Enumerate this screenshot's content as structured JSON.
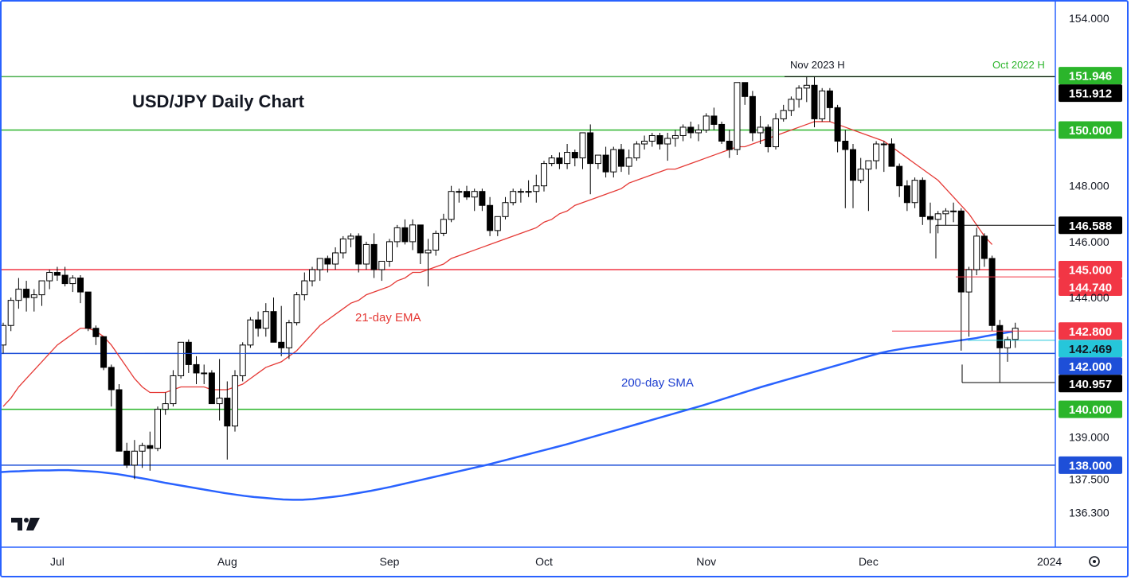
{
  "chart_data": {
    "type": "candlestick",
    "title": "USD/JPY Daily Chart",
    "y_axis": {
      "range": [
        135.8,
        154.6
      ],
      "ticks": [
        "154.000",
        "148.000",
        "146.000",
        "144.000",
        "139.000",
        "137.500",
        "136.300"
      ],
      "tick_values": [
        154.0,
        148.0,
        146.0,
        144.0,
        139.0,
        137.5,
        136.3
      ]
    },
    "x_axis": {
      "labels": [
        "Jul",
        "Aug",
        "Sep",
        "Oct",
        "Nov",
        "Dec",
        "2024"
      ],
      "label_index": [
        7,
        29,
        50,
        70,
        91,
        112,
        134
      ]
    },
    "candles": [
      [
        142.3,
        143.1,
        142.0,
        143.0
      ],
      [
        143.0,
        144.0,
        142.8,
        143.9
      ],
      [
        143.9,
        144.7,
        143.6,
        144.3
      ],
      [
        144.3,
        144.6,
        143.5,
        144.0
      ],
      [
        144.0,
        144.3,
        143.5,
        144.1
      ],
      [
        144.1,
        144.5,
        143.7,
        144.6
      ],
      [
        144.6,
        145.0,
        144.3,
        144.9
      ],
      [
        144.9,
        145.1,
        144.6,
        144.8
      ],
      [
        144.8,
        145.1,
        144.4,
        144.5
      ],
      [
        144.5,
        144.8,
        144.2,
        144.7
      ],
      [
        144.7,
        144.8,
        143.8,
        144.2
      ],
      [
        144.2,
        144.2,
        142.8,
        142.9
      ],
      [
        142.9,
        143.0,
        142.3,
        142.6
      ],
      [
        142.6,
        142.6,
        141.4,
        141.5
      ],
      [
        141.5,
        141.6,
        140.1,
        140.7
      ],
      [
        140.7,
        140.9,
        138.6,
        138.5
      ],
      [
        138.5,
        138.8,
        137.9,
        138.0
      ],
      [
        138.0,
        138.9,
        137.5,
        138.5
      ],
      [
        138.5,
        138.8,
        137.9,
        138.7
      ],
      [
        138.7,
        139.2,
        137.8,
        138.6
      ],
      [
        138.6,
        140.1,
        138.5,
        140.0
      ],
      [
        140.0,
        140.6,
        139.8,
        140.2
      ],
      [
        140.2,
        141.4,
        140.1,
        141.2
      ],
      [
        141.2,
        142.4,
        141.1,
        142.4
      ],
      [
        142.4,
        142.5,
        141.3,
        141.6
      ],
      [
        141.6,
        141.9,
        140.9,
        141.3
      ],
      [
        141.3,
        141.6,
        140.9,
        141.3
      ],
      [
        141.3,
        141.4,
        140.2,
        140.2
      ],
      [
        140.2,
        141.8,
        139.6,
        140.4
      ],
      [
        140.4,
        141.0,
        138.2,
        139.4
      ],
      [
        139.4,
        141.4,
        139.2,
        141.2
      ],
      [
        141.2,
        142.4,
        141.0,
        142.3
      ],
      [
        142.3,
        143.3,
        142.2,
        143.2
      ],
      [
        143.2,
        143.5,
        142.6,
        142.9
      ],
      [
        142.9,
        143.8,
        142.6,
        143.5
      ],
      [
        143.5,
        144.0,
        142.4,
        142.4
      ],
      [
        142.4,
        143.7,
        141.9,
        142.2
      ],
      [
        142.2,
        143.2,
        141.8,
        143.1
      ],
      [
        143.1,
        144.2,
        143.0,
        144.1
      ],
      [
        144.1,
        144.9,
        143.9,
        144.6
      ],
      [
        144.6,
        145.1,
        144.4,
        145.0
      ],
      [
        145.0,
        145.4,
        144.6,
        145.4
      ],
      [
        145.4,
        145.5,
        144.9,
        145.2
      ],
      [
        145.2,
        145.8,
        145.0,
        145.6
      ],
      [
        145.6,
        146.2,
        145.4,
        146.1
      ],
      [
        146.1,
        146.3,
        145.8,
        146.2
      ],
      [
        146.2,
        146.3,
        144.9,
        145.2
      ],
      [
        145.2,
        146.0,
        145.0,
        145.9
      ],
      [
        145.9,
        146.3,
        144.7,
        145.0
      ],
      [
        145.0,
        145.2,
        144.6,
        145.3
      ],
      [
        145.3,
        146.1,
        145.1,
        146.0
      ],
      [
        146.0,
        146.6,
        145.8,
        146.5
      ],
      [
        146.5,
        146.8,
        145.9,
        146.0
      ],
      [
        146.0,
        146.8,
        145.7,
        146.6
      ],
      [
        146.6,
        146.6,
        145.2,
        145.6
      ],
      [
        145.6,
        146.1,
        144.4,
        145.7
      ],
      [
        145.7,
        146.4,
        145.5,
        146.3
      ],
      [
        146.3,
        147.0,
        146.2,
        146.8
      ],
      [
        146.8,
        148.0,
        146.7,
        147.8
      ],
      [
        147.8,
        147.9,
        147.4,
        147.8
      ],
      [
        147.8,
        148.0,
        147.5,
        147.6
      ],
      [
        147.6,
        147.9,
        147.1,
        147.8
      ],
      [
        147.8,
        147.9,
        147.1,
        147.3
      ],
      [
        147.3,
        147.6,
        146.2,
        146.4
      ],
      [
        146.4,
        146.9,
        146.2,
        146.9
      ],
      [
        146.9,
        147.6,
        146.8,
        147.4
      ],
      [
        147.4,
        147.9,
        147.3,
        147.8
      ],
      [
        147.8,
        147.9,
        147.4,
        147.8
      ],
      [
        147.8,
        148.2,
        147.6,
        147.8
      ],
      [
        147.8,
        148.4,
        147.4,
        148.0
      ],
      [
        148.0,
        148.9,
        147.8,
        148.8
      ],
      [
        148.8,
        149.1,
        148.7,
        149.0
      ],
      [
        149.0,
        149.2,
        148.6,
        148.8
      ],
      [
        148.8,
        149.5,
        148.6,
        149.2
      ],
      [
        149.2,
        149.3,
        148.7,
        149.0
      ],
      [
        149.0,
        149.9,
        148.6,
        149.9
      ],
      [
        149.9,
        150.2,
        147.7,
        148.8
      ],
      [
        148.8,
        149.1,
        148.6,
        149.1
      ],
      [
        149.1,
        149.4,
        148.3,
        148.5
      ],
      [
        148.5,
        149.4,
        148.3,
        149.3
      ],
      [
        149.3,
        149.5,
        148.5,
        148.7
      ],
      [
        148.7,
        149.3,
        148.4,
        149.0
      ],
      [
        149.0,
        149.6,
        148.9,
        149.5
      ],
      [
        149.5,
        149.8,
        149.3,
        149.6
      ],
      [
        149.6,
        149.9,
        149.4,
        149.8
      ],
      [
        149.8,
        149.9,
        149.3,
        149.5
      ],
      [
        149.5,
        149.9,
        148.9,
        149.7
      ],
      [
        149.7,
        150.0,
        149.4,
        149.8
      ],
      [
        149.8,
        150.2,
        149.6,
        150.1
      ],
      [
        150.1,
        150.3,
        149.7,
        149.9
      ],
      [
        149.9,
        150.2,
        149.6,
        150.0
      ],
      [
        150.0,
        150.6,
        149.9,
        150.5
      ],
      [
        150.5,
        150.8,
        150.0,
        150.2
      ],
      [
        150.2,
        150.3,
        149.5,
        149.6
      ],
      [
        149.6,
        150.0,
        149.0,
        149.3
      ],
      [
        149.3,
        151.7,
        149.1,
        151.7
      ],
      [
        151.7,
        151.7,
        150.9,
        151.2
      ],
      [
        151.2,
        151.4,
        149.6,
        149.9
      ],
      [
        149.9,
        150.5,
        149.5,
        150.1
      ],
      [
        150.1,
        150.2,
        149.2,
        149.4
      ],
      [
        149.4,
        150.6,
        149.3,
        150.4
      ],
      [
        150.4,
        150.9,
        150.3,
        150.7
      ],
      [
        150.7,
        151.2,
        150.5,
        151.1
      ],
      [
        151.1,
        151.6,
        150.8,
        151.5
      ],
      [
        151.5,
        151.9,
        151.0,
        151.6
      ],
      [
        151.6,
        151.9,
        150.1,
        150.4
      ],
      [
        150.4,
        151.5,
        150.3,
        151.4
      ],
      [
        151.4,
        151.5,
        150.3,
        150.8
      ],
      [
        150.8,
        150.9,
        149.2,
        149.6
      ],
      [
        149.6,
        150.0,
        147.2,
        149.3
      ],
      [
        149.3,
        149.5,
        147.2,
        148.2
      ],
      [
        148.2,
        149.0,
        148.1,
        148.6
      ],
      [
        148.6,
        148.9,
        147.1,
        148.9
      ],
      [
        148.9,
        149.6,
        148.6,
        149.5
      ],
      [
        149.5,
        149.6,
        148.5,
        149.5
      ],
      [
        149.5,
        149.7,
        148.7,
        148.7
      ],
      [
        148.7,
        148.8,
        147.6,
        148.0
      ],
      [
        148.0,
        148.2,
        147.1,
        147.4
      ],
      [
        147.4,
        148.3,
        147.2,
        148.2
      ],
      [
        148.2,
        148.3,
        146.6,
        146.9
      ],
      [
        146.9,
        147.4,
        146.3,
        146.8
      ],
      [
        146.8,
        147.1,
        146.3,
        147.0
      ],
      [
        147.0,
        147.2,
        146.6,
        147.1
      ],
      [
        147.1,
        147.4,
        146.7,
        147.1
      ],
      [
        147.1,
        147.2,
        142.1,
        144.2
      ],
      [
        144.2,
        145.1,
        142.6,
        145.0
      ],
      [
        145.0,
        146.5,
        144.8,
        146.2
      ],
      [
        146.2,
        146.3,
        145.1,
        145.4
      ],
      [
        145.4,
        145.5,
        142.8,
        143.0
      ],
      [
        143.0,
        143.2,
        140.95,
        142.2
      ],
      [
        142.2,
        142.6,
        141.7,
        142.5
      ],
      [
        142.5,
        143.1,
        142.2,
        142.9
      ]
    ],
    "ema21": [
      140.1,
      140.4,
      140.8,
      141.1,
      141.4,
      141.7,
      142.0,
      142.3,
      142.5,
      142.7,
      142.9,
      142.9,
      142.8,
      142.6,
      142.3,
      141.9,
      141.5,
      141.1,
      140.8,
      140.6,
      140.6,
      140.6,
      140.7,
      140.8,
      140.8,
      140.8,
      140.8,
      140.7,
      140.7,
      140.7,
      140.8,
      140.9,
      141.1,
      141.3,
      141.5,
      141.6,
      141.7,
      141.9,
      142.1,
      142.4,
      142.7,
      143.0,
      143.2,
      143.4,
      143.6,
      143.8,
      143.9,
      144.1,
      144.2,
      144.3,
      144.4,
      144.6,
      144.7,
      144.9,
      144.9,
      145.0,
      145.1,
      145.2,
      145.4,
      145.5,
      145.6,
      145.7,
      145.8,
      145.9,
      146.0,
      146.1,
      146.2,
      146.3,
      146.4,
      146.5,
      146.7,
      146.8,
      147.0,
      147.1,
      147.3,
      147.4,
      147.5,
      147.6,
      147.7,
      147.8,
      147.9,
      148.1,
      148.2,
      148.3,
      148.4,
      148.5,
      148.6,
      148.6,
      148.7,
      148.8,
      148.9,
      149.0,
      149.1,
      149.2,
      149.3,
      149.4,
      149.4,
      149.5,
      149.6,
      149.7,
      149.8,
      149.9,
      150.0,
      150.1,
      150.2,
      150.3,
      150.3,
      150.3,
      150.2,
      150.1,
      150.0,
      149.9,
      149.8,
      149.7,
      149.6,
      149.4,
      149.2,
      149.0,
      148.8,
      148.6,
      148.4,
      148.2,
      147.9,
      147.6,
      147.3,
      147.0,
      146.6,
      146.2,
      145.9
    ],
    "sma200": [
      137.75,
      137.77,
      137.78,
      137.8,
      137.81,
      137.81,
      137.82,
      137.82,
      137.8,
      137.78,
      137.76,
      137.72,
      137.68,
      137.62,
      137.56,
      137.5,
      137.43,
      137.36,
      137.3,
      137.24,
      137.18,
      137.12,
      137.06,
      137.0,
      136.95,
      136.9,
      136.86,
      136.83,
      136.8,
      136.77,
      136.76,
      136.76,
      136.78,
      136.82,
      136.86,
      136.9,
      136.96,
      137.02,
      137.08,
      137.15,
      137.22,
      137.3,
      137.38,
      137.46,
      137.54,
      137.62,
      137.7,
      137.78,
      137.86,
      137.94,
      138.02,
      138.11,
      138.2,
      138.29,
      138.38,
      138.47,
      138.56,
      138.65,
      138.74,
      138.84,
      138.94,
      139.04,
      139.14,
      139.24,
      139.34,
      139.44,
      139.54,
      139.64,
      139.74,
      139.84,
      139.94,
      140.04,
      140.14,
      140.25,
      140.36,
      140.47,
      140.58,
      140.69,
      140.8,
      140.9,
      141.0,
      141.1,
      141.2,
      141.3,
      141.4,
      141.5,
      141.6,
      141.7,
      141.8,
      141.9,
      142.0,
      142.08,
      142.14,
      142.2,
      142.25,
      142.3,
      142.35,
      142.4,
      142.45,
      142.5,
      142.55,
      142.62,
      142.68,
      142.74,
      142.8
    ],
    "horizontal_lines": [
      {
        "value": 151.912,
        "color": "#4caf50",
        "label": "Oct 2022 H"
      },
      {
        "value": 150.0,
        "color": "#2bb52b"
      },
      {
        "value": 145.0,
        "color": "#f23645"
      },
      {
        "value": 142.0,
        "color": "#1e4fd8"
      },
      {
        "value": 140.0,
        "color": "#2bb52b"
      },
      {
        "value": 138.0,
        "color": "#1e4fd8"
      }
    ],
    "price_labels": [
      {
        "text": "151.946",
        "value": 151.946,
        "bg": "#2bb52b",
        "fg": "#ffffff"
      },
      {
        "text": "151.912",
        "value": 151.912,
        "bg": "#000000",
        "fg": "#ffffff"
      },
      {
        "text": "150.000",
        "value": 150.0,
        "bg": "#2bb52b",
        "fg": "#ffffff"
      },
      {
        "text": "146.588",
        "value": 146.588,
        "bg": "#000000",
        "fg": "#ffffff"
      },
      {
        "text": "145.000",
        "value": 145.0,
        "bg": "#f23645",
        "fg": "#ffffff"
      },
      {
        "text": "144.740",
        "value": 144.74,
        "bg": "#f23645",
        "fg": "#ffffff"
      },
      {
        "text": "142.800",
        "value": 142.8,
        "bg": "#f23645",
        "fg": "#ffffff"
      },
      {
        "text": "142.469",
        "value": 142.469,
        "bg": "#26c6da",
        "fg": "#131722"
      },
      {
        "text": "142.000",
        "value": 142.0,
        "bg": "#1e4fd8",
        "fg": "#ffffff"
      },
      {
        "text": "140.957",
        "value": 140.957,
        "bg": "#000000",
        "fg": "#ffffff"
      },
      {
        "text": "140.000",
        "value": 140.0,
        "bg": "#2bb52b",
        "fg": "#ffffff"
      },
      {
        "text": "138.000",
        "value": 138.0,
        "bg": "#1e4fd8",
        "fg": "#ffffff"
      }
    ],
    "annotations": [
      {
        "text": "Nov 2023 H",
        "color": "#131722"
      },
      {
        "text": "21-day EMA",
        "color": "#e53935"
      },
      {
        "text": "200-day SMA",
        "color": "#1e3fd0"
      }
    ],
    "colors": {
      "up": "#ffffff",
      "down": "#000000",
      "ema": "#e53935",
      "sma": "#2962ff",
      "frame": "#2962ff"
    }
  },
  "logo": "TV"
}
